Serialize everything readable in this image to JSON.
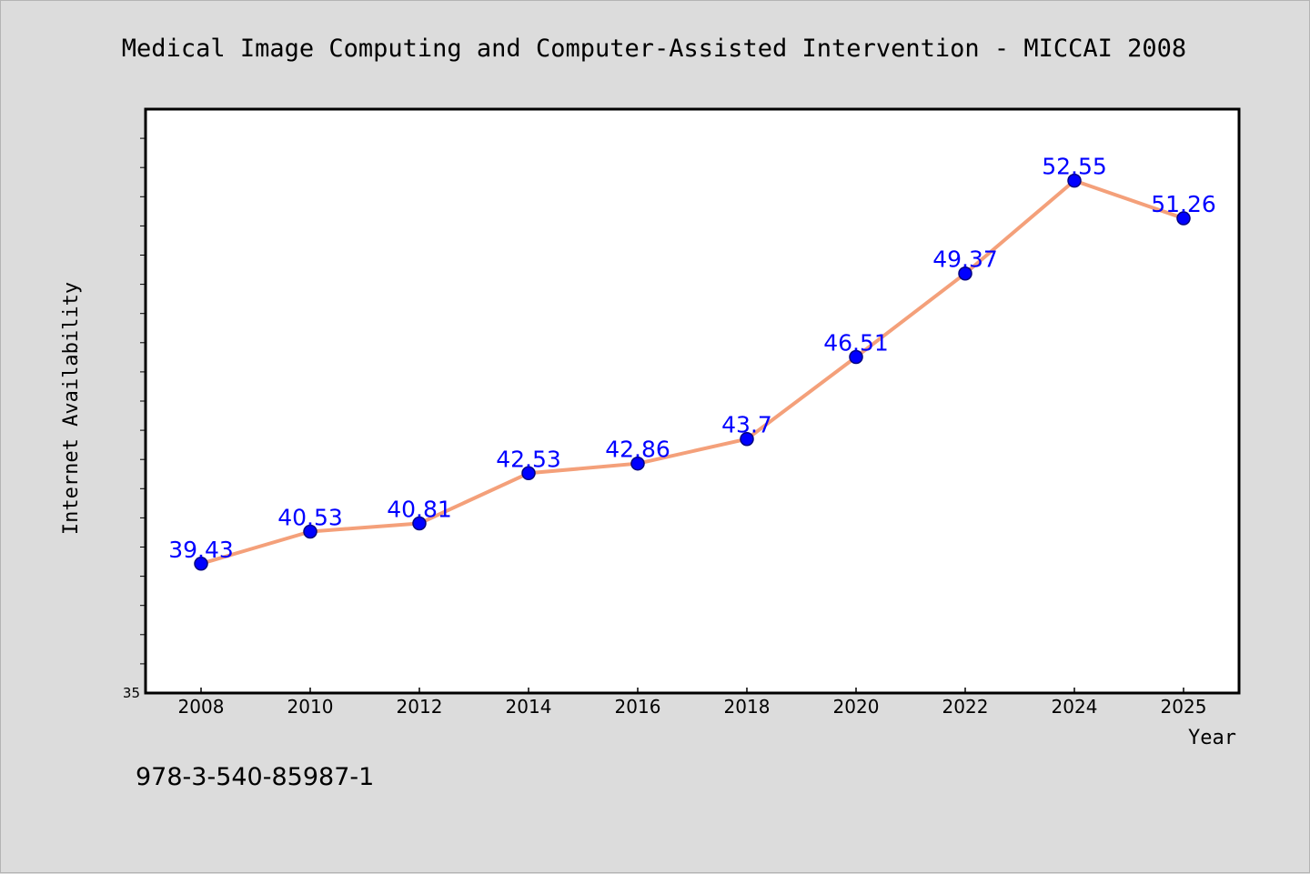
{
  "chart_data": {
    "type": "line",
    "title": "Medical Image Computing and Computer-Assisted Intervention - MICCAI 2008",
    "xlabel": "Year",
    "ylabel": "Internet Availability",
    "categories": [
      "2008",
      "2010",
      "2012",
      "2014",
      "2016",
      "2018",
      "2020",
      "2022",
      "2024",
      "2025"
    ],
    "series": [
      {
        "values": [
          39.43,
          40.53,
          40.81,
          42.53,
          42.86,
          43.7,
          46.51,
          49.37,
          52.55,
          51.26
        ]
      }
    ],
    "data_labels": [
      "39.43",
      "40.53",
      "40.81",
      "42.53",
      "42.86",
      "43.7",
      "46.51",
      "49.37",
      "52.55",
      "51.26"
    ],
    "y_tick_labels": [
      "35"
    ],
    "ylim": [
      35,
      55
    ],
    "grid": false,
    "legend": "none",
    "colors": {
      "line": "#f4a07a",
      "marker": "#0000ff",
      "marker_edge": "#00007f",
      "label": "#0000ff",
      "background": "#dcdcdc",
      "plot_background": "#ffffff"
    }
  },
  "footer": {
    "isbn": "978-3-540-85987-1"
  }
}
